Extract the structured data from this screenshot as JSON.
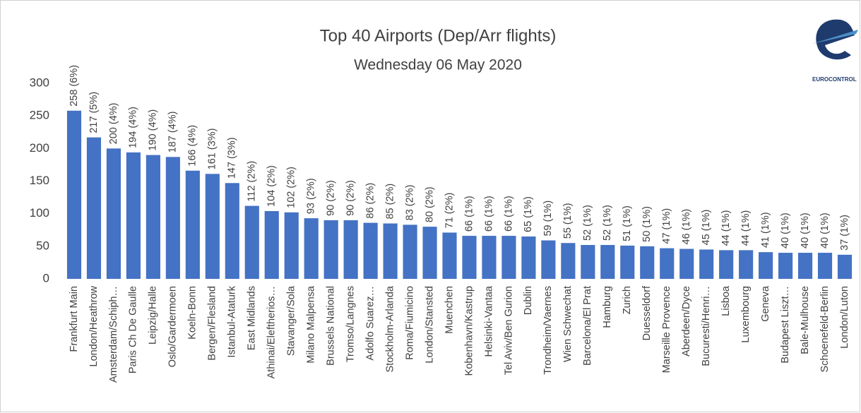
{
  "chart_data": {
    "type": "bar",
    "title": "Top 40 Airports (Dep/Arr flights)",
    "subtitle": "Wednesday 06 May 2020",
    "logo_text": "EUROCONTROL",
    "categories": [
      "Frankfurt Main",
      "London/Heathrow",
      "Amsterdam/Schiph…",
      "Paris Ch De Gaulle",
      "Leipzig/Halle",
      "Oslo/Gardermoen",
      "Koeln-Bonn",
      "Bergen/Flesland",
      "Istanbul-Ataturk",
      "East Midlands",
      "Athinai/Eleftherios…",
      "Stavanger/Sola",
      "Milano Malpensa",
      "Brussels National",
      "Tromso/Langnes",
      "Adolfo Suarez…",
      "Stockholm-Arlanda",
      "Roma/Fiumicino",
      "London/Stansted",
      "Muenchen",
      "Kobenhavn/Kastrup",
      "Helsinki-Vantaa",
      "Tel Aviv/Ben Gurion",
      "Dublin",
      "Trondheim/Vaernes",
      "Wien Schwechat",
      "Barcelona/El Prat",
      "Hamburg",
      "Zurich",
      "Duesseldorf",
      "Marseille Provence",
      "Aberdeen/Dyce",
      "Bucuresti/Henri…",
      "Lisboa",
      "Luxembourg",
      "Geneva",
      "Budapest Liszt…",
      "Bale-Mulhouse",
      "Schoenefeld-Berlin",
      "London/Luton"
    ],
    "values": [
      258,
      217,
      200,
      194,
      190,
      187,
      166,
      161,
      147,
      112,
      104,
      102,
      93,
      90,
      90,
      86,
      85,
      83,
      80,
      71,
      66,
      66,
      66,
      65,
      59,
      55,
      52,
      52,
      51,
      50,
      47,
      46,
      45,
      44,
      44,
      41,
      40,
      40,
      40,
      37
    ],
    "value_labels": [
      "258 (6%)",
      "217 (5%)",
      "200 (4%)",
      "194 (4%)",
      "190 (4%)",
      "187 (4%)",
      "166 (4%)",
      "161 (3%)",
      "147 (3%)",
      "112 (2%)",
      "104 (2%)",
      "102 (2%)",
      "93 (2%)",
      "90 (2%)",
      "90 (2%)",
      "86 (2%)",
      "85 (2%)",
      "83 (2%)",
      "80 (2%)",
      "71 (2%)",
      "66 (1%)",
      "66 (1%)",
      "66 (1%)",
      "65 (1%)",
      "59 (1%)",
      "55 (1%)",
      "52 (1%)",
      "52 (1%)",
      "51 (1%)",
      "50 (1%)",
      "47 (1%)",
      "46 (1%)",
      "45 (1%)",
      "44 (1%)",
      "44 (1%)",
      "41 (1%)",
      "40 (1%)",
      "40 (1%)",
      "40 (1%)",
      "37 (1%)"
    ],
    "color": "#4472c4",
    "ylim": [
      0,
      300
    ],
    "yticks": [
      0,
      50,
      100,
      150,
      200,
      250,
      300
    ],
    "grid": false
  }
}
